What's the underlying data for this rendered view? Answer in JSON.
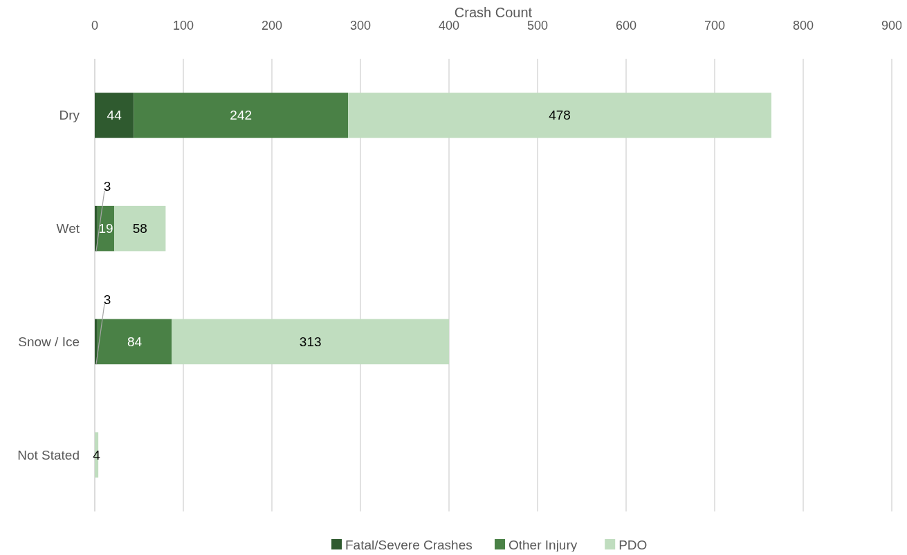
{
  "chart_data": {
    "type": "bar",
    "orientation": "horizontal",
    "stacked": true,
    "xlabel": "Crash Count",
    "categories": [
      "Dry",
      "Wet",
      "Snow / Ice",
      "Not Stated"
    ],
    "series": [
      {
        "name": "Fatal/Severe Crashes",
        "color": "#2f5a2f",
        "values": [
          44,
          3,
          3,
          null
        ]
      },
      {
        "name": "Other Injury",
        "color": "#4a8146",
        "values": [
          242,
          19,
          84,
          null
        ]
      },
      {
        "name": "PDO",
        "color": "#c0ddbf",
        "values": [
          478,
          58,
          313,
          4
        ]
      }
    ],
    "xlim": [
      0,
      900
    ],
    "xticks": [
      0,
      100,
      200,
      300,
      400,
      500,
      600,
      700,
      800,
      900
    ],
    "grid": "x",
    "legend": "bottom",
    "data_labels": true
  }
}
